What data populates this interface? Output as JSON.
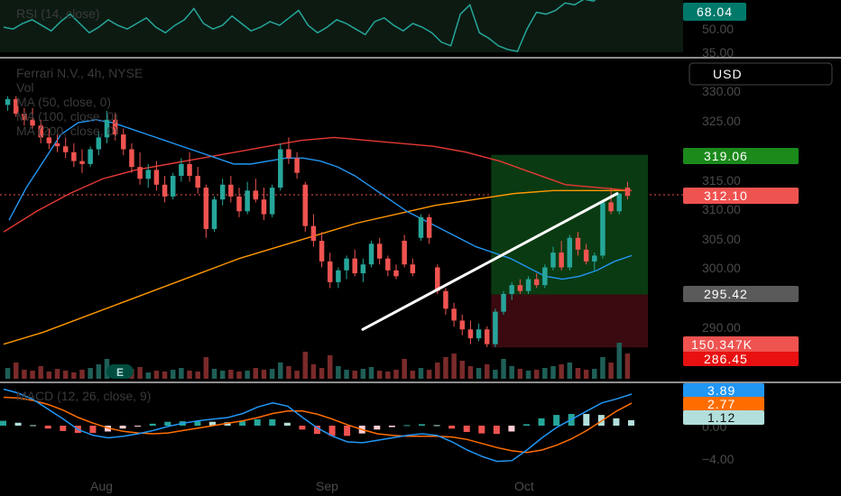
{
  "colors": {
    "up": "#26a69a",
    "down": "#ef5350",
    "ma50": "#2196f3",
    "ma100": "#e53935",
    "ma200": "#ff9800",
    "rsi": "#26a69a",
    "macd": "#2196f3",
    "signal": "#ff6d00",
    "target_zone": "#0b3d0b",
    "stop_zone": "#3d0b0b",
    "trend_line": "#ffffff"
  },
  "rsi": {
    "legend": "RSI (14, close)",
    "value_tag": "68.04",
    "ticks": [
      "50.00",
      "35.00"
    ]
  },
  "main": {
    "symbol_line": "Ferrari N.V., 4h, NYSE",
    "vol_label": "Vol",
    "ma_labels": [
      "MA (50, close, 0)",
      "MA (100, close, 0)",
      "MA (200, close, 0)"
    ],
    "currency_button": "USD",
    "price_ticks": [
      "330.00",
      "325.00",
      "315.00",
      "310.00",
      "305.00",
      "300.00",
      "290.00"
    ],
    "tags": {
      "target": "319.06",
      "last_price": "312.10",
      "entry": "295.42",
      "volume": "150.347K",
      "stop": "286.45"
    },
    "event_marker": "E"
  },
  "macd": {
    "legend": "MACD (12, 26, close, 9)",
    "macd_tag": "3.89",
    "signal_tag": "2.77",
    "hist_tag": "1.12",
    "ticks": [
      "0.00",
      "−4.00"
    ]
  },
  "time_axis": [
    "Aug",
    "Sep",
    "Oct"
  ],
  "chart_data": {
    "type": "candlestick",
    "title": "Ferrari N.V., 4h, NYSE",
    "price_range": [
      285,
      332
    ],
    "rsi_range": [
      30,
      75
    ],
    "macd_range": [
      -5,
      5
    ],
    "candles": [
      [
        327.5,
        329.0,
        326.5,
        328.5
      ],
      [
        328.5,
        329.0,
        325.5,
        326.0
      ],
      [
        326.0,
        327.0,
        324.0,
        325.0
      ],
      [
        325.0,
        327.0,
        323.5,
        324.0
      ],
      [
        324.0,
        325.0,
        321.0,
        322.0
      ],
      [
        322.0,
        323.5,
        320.0,
        321.0
      ],
      [
        321.0,
        322.5,
        319.5,
        320.5
      ],
      [
        320.5,
        322.0,
        318.5,
        319.5
      ],
      [
        319.5,
        321.0,
        317.0,
        318.0
      ],
      [
        318.0,
        320.0,
        316.0,
        317.5
      ],
      [
        317.5,
        320.5,
        317.0,
        320.0
      ],
      [
        320.0,
        323.0,
        319.0,
        322.0
      ],
      [
        322.0,
        326.5,
        321.0,
        325.0
      ],
      [
        325.0,
        326.0,
        321.5,
        322.5
      ],
      [
        322.5,
        323.5,
        319.0,
        320.0
      ],
      [
        320.0,
        321.0,
        316.0,
        317.0
      ],
      [
        317.0,
        319.5,
        314.0,
        315.0
      ],
      [
        315.0,
        317.5,
        313.5,
        316.5
      ],
      [
        316.5,
        318.0,
        313.0,
        314.0
      ],
      [
        314.0,
        315.5,
        311.0,
        312.0
      ],
      [
        312.0,
        316.0,
        311.5,
        315.5
      ],
      [
        315.5,
        318.5,
        314.5,
        317.5
      ],
      [
        317.5,
        319.5,
        314.5,
        315.5
      ],
      [
        315.5,
        317.0,
        312.5,
        313.5
      ],
      [
        313.5,
        314.0,
        305.0,
        306.5
      ],
      [
        306.5,
        312.0,
        306.0,
        311.5
      ],
      [
        311.5,
        315.0,
        310.5,
        314.0
      ],
      [
        314.0,
        315.5,
        311.0,
        312.0
      ],
      [
        312.0,
        313.5,
        308.5,
        309.5
      ],
      [
        309.5,
        314.5,
        309.0,
        313.0
      ],
      [
        313.0,
        315.0,
        311.0,
        311.5
      ],
      [
        311.5,
        313.5,
        308.0,
        309.0
      ],
      [
        309.0,
        314.0,
        308.5,
        313.5
      ],
      [
        313.5,
        321.0,
        313.0,
        320.0
      ],
      [
        320.0,
        322.0,
        317.5,
        318.5
      ],
      [
        318.5,
        319.5,
        315.0,
        316.0
      ],
      [
        314.0,
        314.5,
        306.0,
        307.0
      ],
      [
        307.0,
        309.0,
        303.5,
        304.5
      ],
      [
        304.5,
        306.0,
        300.0,
        301.0
      ],
      [
        301.0,
        302.5,
        296.5,
        297.5
      ],
      [
        297.5,
        300.0,
        296.5,
        299.5
      ],
      [
        299.5,
        302.0,
        298.0,
        301.5
      ],
      [
        301.5,
        303.0,
        298.5,
        299.0
      ],
      [
        299.0,
        301.5,
        297.5,
        300.5
      ],
      [
        300.5,
        304.5,
        300.0,
        304.0
      ],
      [
        304.0,
        305.0,
        300.5,
        301.5
      ],
      [
        301.5,
        302.0,
        298.5,
        299.5
      ],
      [
        299.5,
        300.5,
        298.0,
        298.5
      ],
      [
        304.5,
        305.5,
        300.0,
        300.5
      ],
      [
        300.5,
        301.5,
        298.5,
        299.0
      ],
      [
        305.0,
        309.0,
        304.5,
        308.5
      ],
      [
        308.5,
        309.0,
        304.0,
        305.0
      ],
      [
        300.0,
        300.5,
        295.5,
        296.0
      ],
      [
        296.0,
        296.5,
        292.0,
        293.0
      ],
      [
        293.0,
        294.0,
        290.0,
        291.0
      ],
      [
        291.0,
        292.0,
        288.5,
        289.5
      ],
      [
        289.5,
        291.0,
        287.0,
        288.0
      ],
      [
        288.0,
        290.5,
        287.5,
        289.5
      ],
      [
        289.5,
        290.0,
        286.5,
        287.0
      ],
      [
        287.0,
        293.0,
        286.5,
        292.5
      ],
      [
        292.5,
        296.0,
        292.0,
        295.5
      ],
      [
        295.5,
        297.5,
        294.5,
        297.0
      ],
      [
        297.0,
        298.0,
        295.5,
        296.0
      ],
      [
        296.0,
        298.5,
        295.5,
        298.0
      ],
      [
        298.0,
        299.0,
        296.5,
        297.0
      ],
      [
        297.0,
        300.5,
        296.5,
        300.0
      ],
      [
        300.0,
        303.5,
        299.5,
        302.5
      ],
      [
        302.5,
        304.5,
        299.5,
        300.0
      ],
      [
        300.0,
        305.5,
        299.5,
        305.0
      ],
      [
        305.0,
        306.0,
        302.0,
        303.0
      ],
      [
        303.0,
        304.0,
        300.5,
        301.0
      ],
      [
        301.0,
        302.5,
        299.5,
        302.0
      ],
      [
        302.0,
        311.5,
        301.5,
        311.0
      ],
      [
        311.0,
        313.5,
        309.0,
        309.5
      ],
      [
        309.5,
        312.5,
        309.0,
        312.5
      ],
      [
        313.5,
        314.5,
        311.5,
        312.1
      ]
    ],
    "volume": [
      12,
      18,
      10,
      9,
      14,
      8,
      11,
      9,
      7,
      10,
      12,
      16,
      22,
      9,
      8,
      11,
      13,
      7,
      9,
      8,
      10,
      12,
      9,
      8,
      24,
      11,
      9,
      10,
      8,
      9,
      12,
      10,
      11,
      18,
      14,
      9,
      30,
      16,
      12,
      26,
      14,
      10,
      9,
      11,
      13,
      9,
      8,
      10,
      22,
      9,
      12,
      10,
      18,
      24,
      28,
      20,
      14,
      12,
      16,
      10,
      22,
      14,
      11,
      9,
      10,
      12,
      14,
      16,
      18,
      12,
      10,
      11,
      24,
      18,
      40,
      28
    ],
    "ma50": [
      308.0,
      313.5,
      318.0,
      322.5,
      324.5,
      325.0,
      324.5,
      323.5,
      322.5,
      321.5,
      320.5,
      319.5,
      318.5,
      317.5,
      317.5,
      318.0,
      318.5,
      318.5,
      318.0,
      317.0,
      315.5,
      313.5,
      311.5,
      309.5,
      308.0,
      306.5,
      305.0,
      303.5,
      302.5,
      301.5,
      300.0,
      298.5,
      298.0,
      298.5,
      299.5,
      301.0,
      302.0
    ],
    "ma100": [
      306.0,
      309.5,
      312.5,
      315.0,
      316.5,
      317.5,
      318.5,
      319.5,
      320.5,
      321.5,
      322.0,
      321.5,
      321.0,
      320.5,
      319.5,
      318.0,
      316.0,
      314.0,
      313.5,
      313.0
    ],
    "ma200": [
      287.0,
      289.0,
      291.5,
      294.0,
      296.5,
      299.0,
      301.5,
      303.5,
      305.5,
      307.5,
      309.0,
      310.5,
      311.5,
      312.5,
      313.0,
      313.0,
      313.0
    ],
    "rsi": [
      48,
      47,
      50,
      52,
      49,
      46,
      51,
      55,
      50,
      45,
      48,
      52,
      49,
      47,
      50,
      53,
      48,
      45,
      49,
      52,
      58,
      50,
      47,
      49,
      54,
      50,
      46,
      48,
      51,
      49,
      53,
      57,
      49,
      45,
      48,
      52,
      50,
      47,
      44,
      51,
      53,
      49,
      46,
      50,
      48,
      45,
      40,
      38,
      55,
      60,
      45,
      42,
      38,
      36,
      35,
      47,
      56,
      55,
      57,
      61,
      60,
      63,
      62,
      66,
      64,
      66,
      68
    ],
    "macd_line": [
      4.5,
      4.0,
      3.2,
      2.0,
      0.8,
      -0.5,
      -1.2,
      -1.5,
      -1.3,
      -1.0,
      -0.6,
      -0.1,
      0.3,
      0.6,
      0.8,
      1.0,
      1.5,
      2.3,
      2.8,
      2.4,
      1.0,
      -0.3,
      -1.3,
      -2.0,
      -2.1,
      -1.8,
      -1.5,
      -1.2,
      -1.0,
      -1.2,
      -2.0,
      -3.0,
      -3.8,
      -4.4,
      -4.3,
      -3.0,
      -1.5,
      -0.2,
      0.8,
      1.8,
      2.8,
      3.3,
      3.89
    ],
    "signal_line": [
      3.5,
      3.4,
      3.1,
      2.6,
      1.9,
      1.0,
      0.3,
      -0.3,
      -0.7,
      -0.9,
      -1.0,
      -0.9,
      -0.6,
      -0.3,
      0.0,
      0.3,
      0.6,
      1.0,
      1.5,
      1.8,
      1.8,
      1.4,
      0.8,
      0.1,
      -0.5,
      -1.0,
      -1.2,
      -1.3,
      -1.3,
      -1.3,
      -1.4,
      -1.7,
      -2.2,
      -2.7,
      -3.1,
      -3.3,
      -3.0,
      -2.4,
      -1.6,
      -0.6,
      0.6,
      1.8,
      2.77
    ],
    "trend_line": [
      [
        300.5,
        289.5
      ],
      [
        313.5,
        312.5
      ]
    ],
    "position": {
      "target": 319.06,
      "entry": 295.42,
      "stop": 286.45
    }
  }
}
